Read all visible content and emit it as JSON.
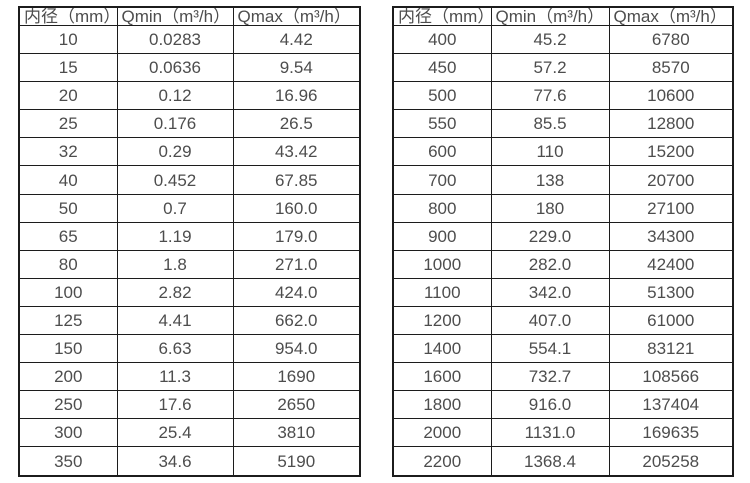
{
  "page": {
    "description_colors": {
      "background": "#ffffff",
      "border": "#1c1c1c",
      "text": "#4d4d4d"
    }
  },
  "chart_data": [
    {
      "type": "table",
      "columns": [
        "内径（mm）",
        "Qmin（m³/h）",
        "Qmax（m³/h）"
      ],
      "rows": [
        [
          "10",
          "0.0283",
          "4.42"
        ],
        [
          "15",
          "0.0636",
          "9.54"
        ],
        [
          "20",
          "0.12",
          "16.96"
        ],
        [
          "25",
          "0.176",
          "26.5"
        ],
        [
          "32",
          "0.29",
          "43.42"
        ],
        [
          "40",
          "0.452",
          "67.85"
        ],
        [
          "50",
          "0.7",
          "160.0"
        ],
        [
          "65",
          "1.19",
          "179.0"
        ],
        [
          "80",
          "1.8",
          "271.0"
        ],
        [
          "100",
          "2.82",
          "424.0"
        ],
        [
          "125",
          "4.41",
          "662.0"
        ],
        [
          "150",
          "6.63",
          "954.0"
        ],
        [
          "200",
          "11.3",
          "1690"
        ],
        [
          "250",
          "17.6",
          "2650"
        ],
        [
          "300",
          "25.4",
          "3810"
        ],
        [
          "350",
          "34.6",
          "5190"
        ]
      ]
    },
    {
      "type": "table",
      "columns": [
        "内径（mm）",
        "Qmin（m³/h）",
        "Qmax（m³/h）"
      ],
      "rows": [
        [
          "400",
          "45.2",
          "6780"
        ],
        [
          "450",
          "57.2",
          "8570"
        ],
        [
          "500",
          "77.6",
          "10600"
        ],
        [
          "550",
          "85.5",
          "12800"
        ],
        [
          "600",
          "110",
          "15200"
        ],
        [
          "700",
          "138",
          "20700"
        ],
        [
          "800",
          "180",
          "27100"
        ],
        [
          "900",
          "229.0",
          "34300"
        ],
        [
          "1000",
          "282.0",
          "42400"
        ],
        [
          "1100",
          "342.0",
          "51300"
        ],
        [
          "1200",
          "407.0",
          "61000"
        ],
        [
          "1400",
          "554.1",
          "83121"
        ],
        [
          "1600",
          "732.7",
          "108566"
        ],
        [
          "1800",
          "916.0",
          "137404"
        ],
        [
          "2000",
          "1131.0",
          "169635"
        ],
        [
          "2200",
          "1368.4",
          "205258"
        ]
      ]
    }
  ]
}
